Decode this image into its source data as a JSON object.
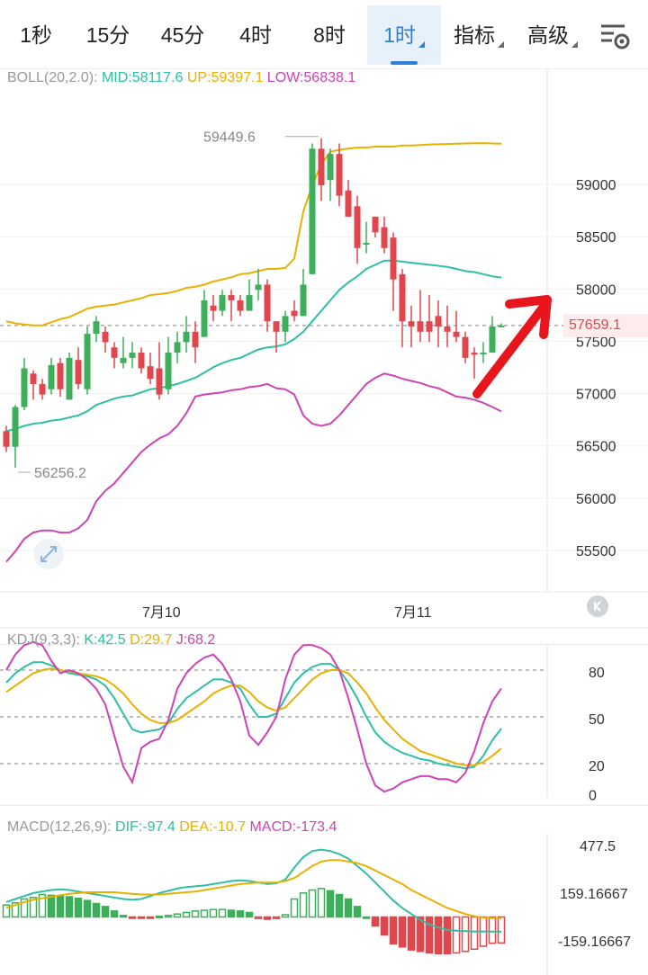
{
  "tabs": [
    {
      "label": "1秒",
      "active": false,
      "dropdown": false
    },
    {
      "label": "15分",
      "active": false,
      "dropdown": false
    },
    {
      "label": "45分",
      "active": false,
      "dropdown": false
    },
    {
      "label": "4时",
      "active": false,
      "dropdown": false
    },
    {
      "label": "8时",
      "active": false,
      "dropdown": false
    },
    {
      "label": "1时",
      "active": true,
      "dropdown": true
    },
    {
      "label": "指标",
      "active": false,
      "dropdown": true
    },
    {
      "label": "高级",
      "active": false,
      "dropdown": true
    }
  ],
  "settings_icon": "chart-settings-icon",
  "boll": {
    "name": "BOLL(20,2.0):",
    "mid": "MID:58117.6",
    "up": "UP:59397.1",
    "low": "LOW:56838.1",
    "colors": {
      "mid": "#2ebfa5",
      "up": "#e8b100",
      "low": "#cc44b5"
    }
  },
  "kdj": {
    "name": "KDJ(9,3,3):",
    "k": "K:42.5",
    "d": "D:29.7",
    "j": "J:68.2"
  },
  "macd": {
    "name": "MACD(12,26,9):",
    "dif": "DIF:-97.4",
    "dea": "DEA:-10.7",
    "macd": "MACD:-173.4"
  },
  "price_axis": [
    "59000",
    "58500",
    "58000",
    "57500",
    "57000",
    "56500",
    "56000",
    "55500"
  ],
  "kdj_axis": [
    "80",
    "50",
    "20",
    "0"
  ],
  "macd_axis": [
    "477.5",
    "159.16667",
    "-159.16667"
  ],
  "date_labels": [
    "7月10",
    "7月11"
  ],
  "current_price": "57659.1",
  "high_label": "59449.6",
  "low_label": "56256.2",
  "colors": {
    "up": "#3dae5a",
    "down": "#e0464c",
    "arrow": "#e8151c",
    "grid": "#f0f0f0",
    "axis_text": "#333333"
  },
  "chart_data": [
    {
      "type": "candlestick",
      "title": "BOLL(20,2.0)",
      "xlabel": "",
      "ylabel": "",
      "ylim": [
        55200,
        59800
      ],
      "x_ticks": [
        "7月10",
        "7月11"
      ],
      "current_price": 57659.1,
      "candles": [
        [
          56650,
          56500,
          56700,
          56450
        ],
        [
          56500,
          56880,
          56900,
          56300
        ],
        [
          56880,
          57250,
          57350,
          56850
        ],
        [
          57200,
          57100,
          57230,
          56950
        ],
        [
          57100,
          57000,
          57150,
          56950
        ],
        [
          57050,
          57280,
          57350,
          57000
        ],
        [
          57300,
          57050,
          57350,
          56980
        ],
        [
          56950,
          57350,
          57400,
          56950
        ],
        [
          57330,
          57100,
          57450,
          57050
        ],
        [
          57050,
          57580,
          57650,
          57000
        ],
        [
          57580,
          57700,
          57750,
          57500
        ],
        [
          57600,
          57500,
          57650,
          57400
        ],
        [
          57450,
          57350,
          57500,
          57250
        ],
        [
          57300,
          57350,
          57550,
          57250
        ],
        [
          57350,
          57400,
          57500,
          57250
        ],
        [
          57400,
          57250,
          57450,
          57200
        ],
        [
          57270,
          57150,
          57400,
          57100
        ],
        [
          57250,
          57000,
          57500,
          56950
        ],
        [
          57050,
          57400,
          57550,
          57000
        ],
        [
          57400,
          57500,
          57600,
          57300
        ],
        [
          57500,
          57600,
          57750,
          57400
        ],
        [
          57600,
          57450,
          57700,
          57300
        ],
        [
          57550,
          57900,
          58000,
          57550
        ],
        [
          57850,
          57800,
          57950,
          57700
        ],
        [
          57800,
          57950,
          58000,
          57750
        ],
        [
          57950,
          57900,
          58000,
          57700
        ],
        [
          57900,
          57800,
          57950,
          57750
        ],
        [
          57800,
          57950,
          58100,
          57800
        ],
        [
          58000,
          58050,
          58200,
          57900
        ],
        [
          58050,
          57700,
          58100,
          57600
        ],
        [
          57700,
          57600,
          57700,
          57400
        ],
        [
          57600,
          57750,
          57800,
          57500
        ],
        [
          57800,
          57750,
          57900,
          57700
        ],
        [
          57750,
          58050,
          58200,
          57750
        ],
        [
          58150,
          59350,
          59400,
          58150
        ],
        [
          59350,
          59000,
          59449.6,
          58850
        ],
        [
          59050,
          59300,
          59350,
          58850
        ],
        [
          59300,
          58900,
          59400,
          58800
        ],
        [
          58950,
          58700,
          59050,
          58700
        ],
        [
          58800,
          58400,
          58900,
          58250
        ],
        [
          58450,
          58450,
          58650,
          58350
        ],
        [
          58700,
          58550,
          58700,
          58500
        ],
        [
          58600,
          58400,
          58700,
          58350
        ],
        [
          58500,
          58100,
          58550,
          57800
        ],
        [
          58150,
          57700,
          58200,
          57450
        ],
        [
          57700,
          57650,
          57850,
          57450
        ],
        [
          57700,
          57600,
          58000,
          57500
        ],
        [
          57700,
          57600,
          57950,
          57500
        ],
        [
          57750,
          57650,
          57900,
          57450
        ],
        [
          57650,
          57600,
          57850,
          57450
        ],
        [
          57600,
          57550,
          57800,
          57500
        ],
        [
          57550,
          57350,
          57600,
          57300
        ],
        [
          57400,
          57380,
          57450,
          57150
        ],
        [
          57400,
          57400,
          57500,
          57300
        ],
        [
          57400,
          57650,
          57750,
          57400
        ],
        [
          57659.1,
          57659.1,
          57680,
          57640
        ]
      ],
      "series": [
        {
          "name": "MID",
          "values": [
            56650,
            56670,
            56700,
            56720,
            56730,
            56750,
            56760,
            56780,
            56800,
            56840,
            56900,
            56930,
            56960,
            56980,
            56990,
            57020,
            57050,
            57060,
            57080,
            57100,
            57130,
            57160,
            57210,
            57260,
            57300,
            57330,
            57350,
            57390,
            57430,
            57450,
            57460,
            57480,
            57530,
            57600,
            57700,
            57800,
            57900,
            58000,
            58070,
            58130,
            58200,
            58240,
            58280,
            58280,
            58270,
            58260,
            58250,
            58240,
            58230,
            58220,
            58200,
            58180,
            58170,
            58150,
            58130,
            58117.6
          ]
        },
        {
          "name": "UP",
          "values": [
            57700,
            57680,
            57670,
            57660,
            57660,
            57690,
            57720,
            57740,
            57780,
            57820,
            57840,
            57850,
            57860,
            57880,
            57900,
            57920,
            57950,
            57960,
            57970,
            57990,
            58020,
            58030,
            58050,
            58080,
            58100,
            58120,
            58150,
            58160,
            58180,
            58200,
            58200,
            58210,
            58300,
            58750,
            59000,
            59200,
            59320,
            59340,
            59350,
            59360,
            59360,
            59370,
            59370,
            59370,
            59380,
            59380,
            59385,
            59390,
            59392,
            59395,
            59397,
            59400,
            59402,
            59403,
            59400,
            59397.1
          ]
        },
        {
          "name": "LOW",
          "values": [
            55400,
            55500,
            55620,
            55680,
            55700,
            55700,
            55680,
            55680,
            55720,
            55800,
            55980,
            56080,
            56150,
            56250,
            56350,
            56450,
            56520,
            56580,
            56620,
            56700,
            56820,
            56980,
            57000,
            57010,
            57020,
            57040,
            57050,
            57070,
            57080,
            57100,
            57060,
            57050,
            57000,
            56800,
            56720,
            56700,
            56720,
            56800,
            56900,
            57000,
            57100,
            57160,
            57200,
            57180,
            57150,
            57130,
            57110,
            57080,
            57060,
            57020,
            56980,
            56970,
            56950,
            56920,
            56880,
            56838.1
          ]
        }
      ]
    },
    {
      "type": "line",
      "title": "KDJ(9,3,3)",
      "xlabel": "",
      "ylabel": "",
      "ylim": [
        0,
        100
      ],
      "series": [
        {
          "name": "K",
          "values": [
            72,
            78,
            82,
            85,
            85,
            83,
            80,
            78,
            77,
            76,
            74,
            70,
            62,
            52,
            42,
            40,
            41,
            42,
            46,
            55,
            62,
            66,
            70,
            74,
            74,
            72,
            68,
            58,
            50,
            50,
            52,
            62,
            72,
            78,
            82,
            84,
            84,
            80,
            72,
            62,
            50,
            40,
            34,
            30,
            27,
            25,
            23,
            22,
            20,
            19,
            18,
            17,
            18,
            25,
            35,
            42.5
          ]
        },
        {
          "name": "D",
          "values": [
            66,
            70,
            74,
            78,
            80,
            81,
            80,
            79,
            78,
            77,
            76,
            74,
            70,
            65,
            58,
            52,
            48,
            46,
            46,
            48,
            52,
            56,
            60,
            65,
            68,
            70,
            70,
            66,
            60,
            56,
            54,
            56,
            62,
            68,
            74,
            78,
            80,
            80,
            78,
            72,
            65,
            56,
            48,
            42,
            36,
            32,
            28,
            26,
            24,
            22,
            20,
            19,
            19,
            21,
            25,
            29.7
          ]
        },
        {
          "name": "J",
          "values": [
            80,
            90,
            96,
            98,
            96,
            86,
            78,
            80,
            78,
            74,
            68,
            58,
            38,
            18,
            8,
            30,
            34,
            36,
            48,
            68,
            78,
            84,
            88,
            90,
            84,
            74,
            60,
            38,
            32,
            40,
            50,
            74,
            90,
            96,
            96,
            94,
            90,
            80,
            62,
            42,
            20,
            6,
            2,
            4,
            8,
            10,
            12,
            12,
            10,
            10,
            8,
            14,
            28,
            46,
            60,
            68.2
          ]
        }
      ]
    },
    {
      "type": "bar",
      "title": "MACD(12,26,9)",
      "xlabel": "",
      "ylabel": "",
      "ylim": [
        -300,
        560
      ],
      "values": [
        80,
        95,
        120,
        130,
        150,
        145,
        140,
        135,
        125,
        110,
        90,
        70,
        40,
        10,
        -5,
        -8,
        -5,
        5,
        10,
        20,
        30,
        40,
        45,
        50,
        50,
        45,
        40,
        30,
        -10,
        -15,
        -10,
        15,
        120,
        160,
        180,
        190,
        175,
        150,
        120,
        70,
        0,
        -60,
        -120,
        -180,
        -200,
        -220,
        -230,
        -240,
        -245,
        -245,
        -240,
        -230,
        -215,
        -195,
        -175,
        -173.4
      ],
      "series": [
        {
          "name": "DIF",
          "values": [
            100,
            120,
            140,
            160,
            170,
            180,
            185,
            180,
            170,
            160,
            150,
            140,
            130,
            120,
            115,
            120,
            140,
            160,
            175,
            190,
            200,
            205,
            210,
            220,
            230,
            240,
            245,
            240,
            230,
            220,
            225,
            250,
            330,
            400,
            440,
            450,
            440,
            420,
            390,
            340,
            290,
            230,
            170,
            110,
            60,
            20,
            -20,
            -50,
            -70,
            -85,
            -92,
            -95,
            -97,
            -97,
            -97.5,
            -97.4
          ]
        },
        {
          "name": "DEA",
          "values": [
            60,
            80,
            100,
            115,
            125,
            135,
            145,
            155,
            160,
            165,
            165,
            165,
            165,
            160,
            155,
            150,
            150,
            150,
            155,
            160,
            165,
            170,
            180,
            190,
            200,
            210,
            220,
            225,
            230,
            230,
            230,
            240,
            260,
            300,
            340,
            370,
            380,
            380,
            370,
            360,
            340,
            310,
            280,
            250,
            220,
            180,
            150,
            120,
            90,
            60,
            40,
            20,
            5,
            -5,
            -8,
            -10.7
          ]
        }
      ]
    }
  ]
}
